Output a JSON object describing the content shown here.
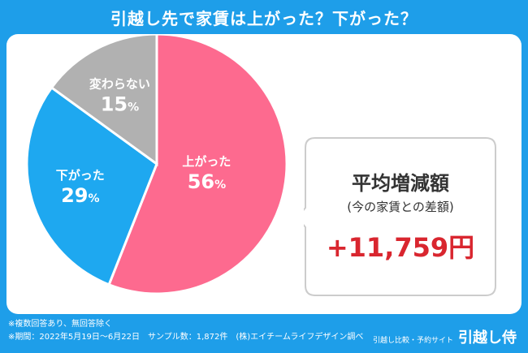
{
  "chart_data": {
    "type": "pie",
    "title": "引越し先で家賃は上がった？下がった？",
    "slices": [
      {
        "label": "上がった",
        "value": 56,
        "value_label": "56",
        "unit": "%",
        "color": "#fd6a8f"
      },
      {
        "label": "下がった",
        "value": 29,
        "value_label": "29",
        "unit": "%",
        "color": "#1ea8f0"
      },
      {
        "label": "変わらない",
        "value": 15,
        "value_label": "15",
        "unit": "%",
        "color": "#b1b1b1"
      }
    ],
    "start": "12 o'clock",
    "direction": "clockwise",
    "border_color": "#ffffff"
  },
  "callout": {
    "title": "平均増減額",
    "subtitle": "(今の家賃との差額)",
    "value": "+11,759円"
  },
  "notes": [
    "※複数回答あり、無回答除く",
    "※期間：2022年5月19日〜6月22日　サンプル数：1,872件　(株)エイチームライフデザイン調べ"
  ],
  "brand": {
    "tagline": "引越し比較・予約サイト",
    "name": "引越し侍"
  },
  "colors": {
    "background": "#1e9ee9",
    "panel": "#ffffff",
    "callout_border": "#cccccc",
    "value": "#d9262f"
  }
}
